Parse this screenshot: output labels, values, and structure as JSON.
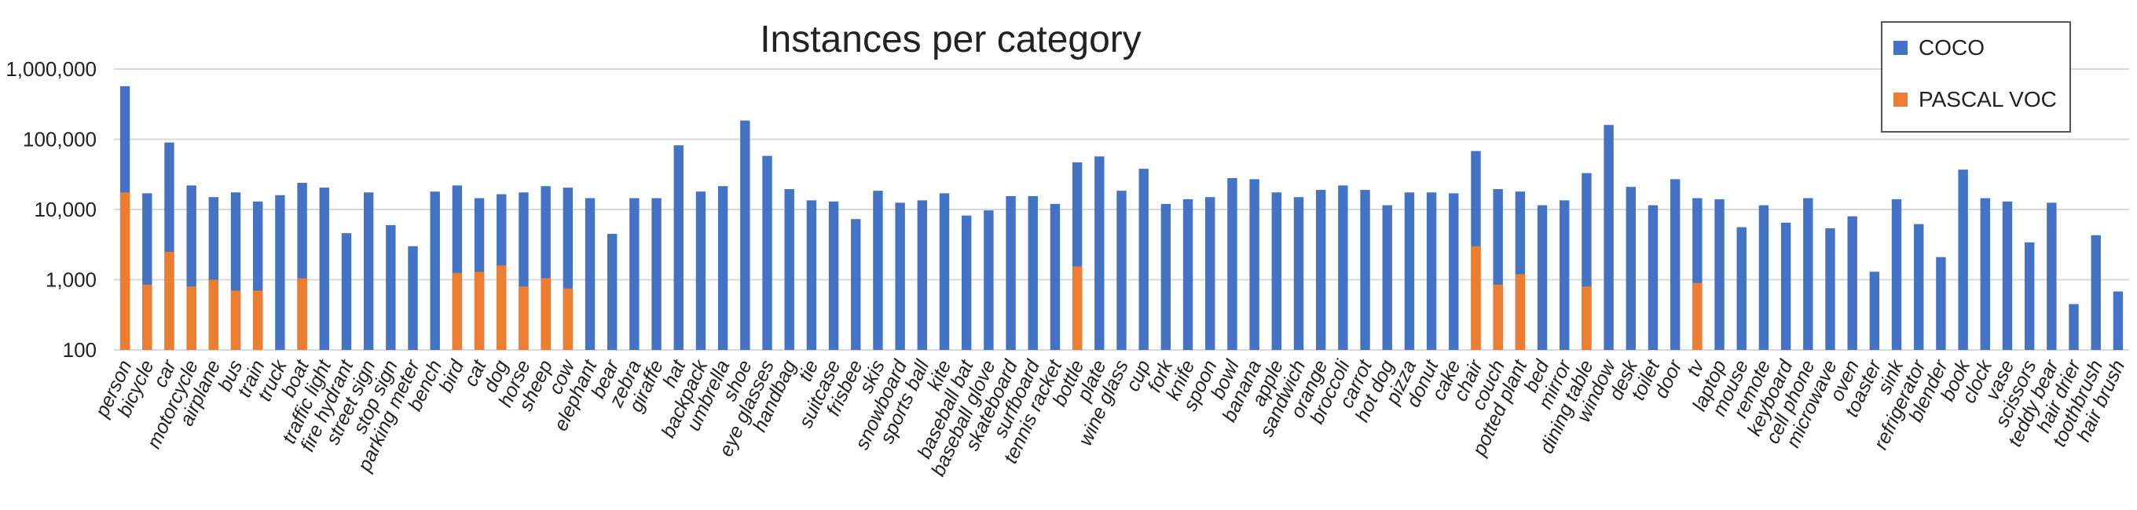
{
  "chart_data": {
    "type": "bar",
    "title": "Instances per category",
    "xlabel": "",
    "ylabel": "",
    "yscale": "log",
    "ylim": [
      100,
      1000000
    ],
    "yticks": [
      "100",
      "1,000",
      "10,000",
      "100,000",
      "1,000,000"
    ],
    "grid": true,
    "legend_position": "top-right",
    "colors": {
      "COCO": "#4472C4",
      "PASCAL VOC": "#ED7D31"
    },
    "categories": [
      "person",
      "bicycle",
      "car",
      "motorcycle",
      "airplane",
      "bus",
      "train",
      "truck",
      "boat",
      "traffic light",
      "fire hydrant",
      "street sign",
      "stop sign",
      "parking meter",
      "bench",
      "bird",
      "cat",
      "dog",
      "horse",
      "sheep",
      "cow",
      "elephant",
      "bear",
      "zebra",
      "giraffe",
      "hat",
      "backpack",
      "umbrella",
      "shoe",
      "eye glasses",
      "handbag",
      "tie",
      "suitcase",
      "frisbee",
      "skis",
      "snowboard",
      "sports ball",
      "kite",
      "baseball bat",
      "baseball glove",
      "skateboard",
      "surfboard",
      "tennis racket",
      "bottle",
      "plate",
      "wine glass",
      "cup",
      "fork",
      "knife",
      "spoon",
      "bowl",
      "banana",
      "apple",
      "sandwich",
      "orange",
      "broccoli",
      "carrot",
      "hot dog",
      "pizza",
      "donut",
      "cake",
      "chair",
      "couch",
      "potted plant",
      "bed",
      "mirror",
      "dining table",
      "window",
      "desk",
      "toilet",
      "door",
      "tv",
      "laptop",
      "mouse",
      "remote",
      "keyboard",
      "cell phone",
      "microwave",
      "oven",
      "toaster",
      "sink",
      "refrigerator",
      "blender",
      "book",
      "clock",
      "vase",
      "scissors",
      "teddy bear",
      "hair drier",
      "toothbrush",
      "hair brush"
    ],
    "series": [
      {
        "name": "COCO",
        "values": [
          570000,
          17000,
          90000,
          22000,
          15000,
          17500,
          13000,
          16000,
          24000,
          20500,
          4600,
          17500,
          6000,
          3000,
          18000,
          22000,
          14500,
          16500,
          17500,
          21500,
          20500,
          14500,
          4500,
          14500,
          14500,
          82000,
          18000,
          21500,
          185000,
          58000,
          19500,
          13500,
          13000,
          7300,
          18500,
          12500,
          13500,
          17000,
          8200,
          9700,
          15500,
          15500,
          12000,
          47000,
          57000,
          18500,
          38000,
          12000,
          14000,
          15000,
          28000,
          27000,
          17500,
          15000,
          19000,
          22000,
          19000,
          11500,
          17500,
          17500,
          17000,
          68000,
          19500,
          18000,
          11500,
          13500,
          33000,
          160000,
          21000,
          11500,
          27000,
          14500,
          14000,
          5600,
          11500,
          6500,
          14500,
          5400,
          8000,
          1300,
          14000,
          6200,
          2100,
          37000,
          14500,
          13000,
          3400,
          12500,
          450,
          4300,
          680
        ]
      },
      {
        "name": "PASCAL VOC",
        "values": [
          17500,
          850,
          2500,
          800,
          1000,
          700,
          700,
          null,
          1050,
          null,
          null,
          null,
          null,
          null,
          null,
          1250,
          1300,
          1600,
          800,
          1050,
          750,
          null,
          null,
          null,
          null,
          null,
          null,
          null,
          null,
          null,
          null,
          null,
          null,
          null,
          null,
          null,
          null,
          null,
          null,
          null,
          null,
          null,
          null,
          1550,
          null,
          null,
          null,
          null,
          null,
          null,
          null,
          null,
          null,
          null,
          null,
          null,
          null,
          null,
          null,
          null,
          null,
          3000,
          850,
          1200,
          null,
          null,
          800,
          null,
          null,
          null,
          null,
          900,
          null,
          null,
          null,
          null,
          null,
          null,
          null,
          null,
          null,
          null,
          null,
          null,
          null,
          null,
          null,
          null,
          null,
          null,
          null
        ]
      }
    ]
  }
}
